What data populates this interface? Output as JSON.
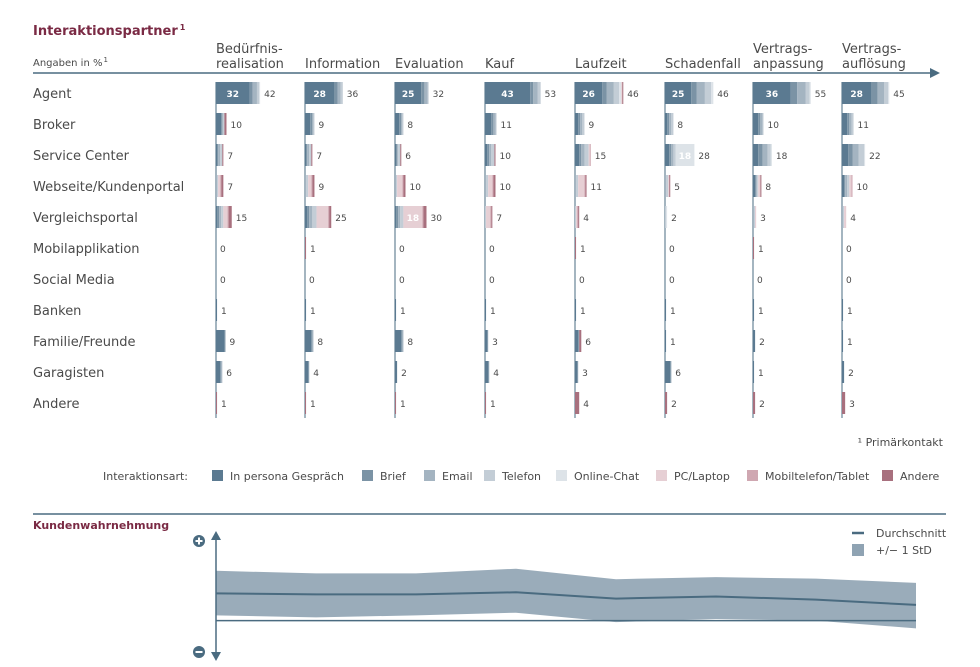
{
  "title": "Interaktionspartner",
  "title_sup": "1",
  "subtitle": "Angaben in %",
  "subtitle_sup": "1",
  "footnote": "¹ Primärkontakt",
  "legend_title": "Interaktionsart:",
  "colors": {
    "title": "#7a2a44",
    "axis": "#4a6b80",
    "text": "#4a4a4a",
    "band": "#8fa3b3",
    "line": "#4a6b80"
  },
  "chart_data": {
    "type": "bar",
    "stacked": true,
    "columns": [
      {
        "label_lines": [
          "Bedürfnis-",
          "realisation"
        ]
      },
      {
        "label_lines": [
          "Information"
        ]
      },
      {
        "label_lines": [
          "Evaluation"
        ]
      },
      {
        "label_lines": [
          "Kauf"
        ]
      },
      {
        "label_lines": [
          "Laufzeit"
        ]
      },
      {
        "label_lines": [
          "Schadenfall"
        ]
      },
      {
        "label_lines": [
          "Vertrags-",
          "anpassung"
        ]
      },
      {
        "label_lines": [
          "Vertrags-",
          "auflösung"
        ]
      }
    ],
    "rows": [
      "Agent",
      "Broker",
      "Service Center",
      "Webseite/Kundenportal",
      "Vergleichsportal",
      "Mobilapplikation",
      "Social Media",
      "Banken",
      "Familie/Freunde",
      "Garagisten",
      "Andere"
    ],
    "series": [
      {
        "name": "In persona Gespräch",
        "color": "#5b7a91"
      },
      {
        "name": "Brief",
        "color": "#7b93a5"
      },
      {
        "name": "Email",
        "color": "#a4b4c1"
      },
      {
        "name": "Telefon",
        "color": "#c3cdd6"
      },
      {
        "name": "Online-Chat",
        "color": "#dde3e8"
      },
      {
        "name": "PC/Laptop",
        "color": "#e6cfd4"
      },
      {
        "name": "Mobiltelefon/Tablet",
        "color": "#cfa7b1"
      },
      {
        "name": "Andere",
        "color": "#a8707e"
      }
    ],
    "totals": [
      [
        42,
        10,
        7,
        7,
        15,
        0,
        0,
        1,
        9,
        6,
        1
      ],
      [
        36,
        9,
        7,
        9,
        25,
        1,
        0,
        1,
        8,
        4,
        1
      ],
      [
        32,
        8,
        6,
        10,
        30,
        0,
        0,
        1,
        8,
        2,
        1
      ],
      [
        53,
        11,
        10,
        10,
        7,
        0,
        0,
        1,
        3,
        4,
        1
      ],
      [
        46,
        9,
        15,
        11,
        4,
        1,
        0,
        1,
        6,
        3,
        4
      ],
      [
        46,
        8,
        28,
        5,
        2,
        0,
        0,
        1,
        1,
        6,
        2
      ],
      [
        55,
        10,
        18,
        8,
        3,
        1,
        0,
        1,
        2,
        1,
        2
      ],
      [
        45,
        11,
        22,
        10,
        4,
        0,
        0,
        1,
        1,
        2,
        3
      ]
    ],
    "inner_labels": [
      {
        "col": 0,
        "row": 0,
        "value": 32
      },
      {
        "col": 1,
        "row": 0,
        "value": 28
      },
      {
        "col": 2,
        "row": 0,
        "value": 25
      },
      {
        "col": 3,
        "row": 0,
        "value": 43
      },
      {
        "col": 4,
        "row": 0,
        "value": 26
      },
      {
        "col": 5,
        "row": 0,
        "value": 25
      },
      {
        "col": 6,
        "row": 0,
        "value": 36
      },
      {
        "col": 7,
        "row": 0,
        "value": 28
      },
      {
        "col": 2,
        "row": 4,
        "value": 18
      },
      {
        "col": 5,
        "row": 2,
        "value": 18
      }
    ],
    "segments": [
      [
        [
          32,
          3,
          4,
          2,
          1,
          0,
          0,
          0
        ],
        [
          5,
          1,
          1,
          1,
          0,
          0,
          0,
          2
        ],
        [
          1,
          1,
          2,
          2,
          0,
          0,
          0,
          1
        ],
        [
          0,
          0,
          1,
          1,
          0,
          2,
          1,
          2
        ],
        [
          1,
          2,
          2,
          2,
          0,
          4,
          1,
          3
        ],
        [],
        [],
        [
          1,
          0,
          0,
          0,
          0,
          0,
          0,
          0
        ],
        [
          8,
          1,
          0,
          0,
          0,
          0,
          0,
          0
        ],
        [
          4,
          1,
          1,
          0,
          0,
          0,
          0,
          0
        ],
        [
          0,
          0,
          0,
          0,
          0,
          0,
          0,
          1
        ]
      ],
      [
        [
          28,
          3,
          3,
          2,
          0,
          0,
          0,
          0
        ],
        [
          5,
          2,
          1,
          1,
          0,
          0,
          0,
          0
        ],
        [
          1,
          1,
          2,
          2,
          0,
          0,
          0,
          1
        ],
        [
          0,
          0,
          1,
          2,
          0,
          3,
          1,
          2
        ],
        [
          2,
          2,
          3,
          4,
          0,
          11,
          1,
          2
        ],
        [
          0,
          0,
          0,
          0,
          0,
          0,
          0,
          1
        ],
        [],
        [
          1,
          0,
          0,
          0,
          0,
          0,
          0,
          0
        ],
        [
          6,
          1,
          1,
          0,
          0,
          0,
          0,
          0
        ],
        [
          3,
          1,
          0,
          0,
          0,
          0,
          0,
          0
        ],
        [
          0,
          0,
          0,
          0,
          0,
          0,
          0,
          1
        ]
      ],
      [
        [
          25,
          3,
          3,
          1,
          0,
          0,
          0,
          0
        ],
        [
          4,
          2,
          1,
          1,
          0,
          0,
          0,
          0
        ],
        [
          1,
          1,
          1,
          2,
          0,
          0,
          0,
          1
        ],
        [
          0,
          0,
          1,
          1,
          0,
          5,
          1,
          2
        ],
        [
          1,
          2,
          2,
          3,
          0,
          18,
          1,
          3
        ],
        [],
        [],
        [
          1,
          0,
          0,
          0,
          0,
          0,
          0,
          0
        ],
        [
          6,
          1,
          1,
          0,
          0,
          0,
          0,
          0
        ],
        [
          2,
          0,
          0,
          0,
          0,
          0,
          0,
          0
        ],
        [
          0,
          0,
          0,
          0,
          0,
          0,
          0,
          1
        ]
      ],
      [
        [
          43,
          3,
          4,
          3,
          0,
          0,
          0,
          0
        ],
        [
          6,
          2,
          2,
          1,
          0,
          0,
          0,
          0
        ],
        [
          2,
          2,
          2,
          3,
          0,
          0,
          0,
          1
        ],
        [
          0,
          0,
          1,
          2,
          0,
          4,
          1,
          2
        ],
        [
          0,
          0,
          0,
          1,
          0,
          4,
          1,
          1
        ],
        [],
        [],
        [
          1,
          0,
          0,
          0,
          0,
          0,
          0,
          0
        ],
        [
          2,
          1,
          0,
          0,
          0,
          0,
          0,
          0
        ],
        [
          3,
          1,
          0,
          0,
          0,
          0,
          0,
          0
        ],
        [
          0,
          0,
          0,
          0,
          0,
          0,
          0,
          1
        ]
      ],
      [
        [
          26,
          4,
          7,
          5,
          2,
          1,
          0,
          1
        ],
        [
          3,
          2,
          2,
          2,
          0,
          0,
          0,
          0
        ],
        [
          4,
          2,
          3,
          4,
          0,
          1,
          1,
          0
        ],
        [
          0,
          0,
          1,
          2,
          0,
          6,
          1,
          1
        ],
        [
          0,
          0,
          0,
          1,
          0,
          1,
          1,
          1
        ],
        [
          0,
          0,
          0,
          0,
          0,
          0,
          0,
          1
        ],
        [],
        [
          1,
          0,
          0,
          0,
          0,
          0,
          0,
          0
        ],
        [
          3,
          1,
          0,
          0,
          0,
          0,
          0,
          2
        ],
        [
          2,
          1,
          0,
          0,
          0,
          0,
          0,
          0
        ],
        [
          0,
          0,
          0,
          0,
          0,
          0,
          0,
          4
        ]
      ],
      [
        [
          25,
          5,
          8,
          6,
          2,
          0,
          0,
          0
        ],
        [
          2,
          2,
          2,
          2,
          0,
          0,
          0,
          0
        ],
        [
          4,
          2,
          2,
          2,
          18,
          0,
          0,
          0
        ],
        [
          0,
          0,
          1,
          2,
          0,
          1,
          0,
          1
        ],
        [
          0,
          0,
          0,
          1,
          1,
          0,
          0,
          0
        ],
        [],
        [],
        [
          1,
          0,
          0,
          0,
          0,
          0,
          0,
          0
        ],
        [
          1,
          0,
          0,
          0,
          0,
          0,
          0,
          0
        ],
        [
          5,
          1,
          0,
          0,
          0,
          0,
          0,
          0
        ],
        [
          0,
          0,
          0,
          0,
          0,
          0,
          0,
          2
        ]
      ],
      [
        [
          36,
          6,
          8,
          4,
          1,
          0,
          0,
          0
        ],
        [
          5,
          2,
          2,
          1,
          0,
          0,
          0,
          0
        ],
        [
          5,
          4,
          5,
          3,
          1,
          0,
          0,
          0
        ],
        [
          2,
          1,
          1,
          1,
          0,
          2,
          0,
          1
        ],
        [
          0,
          0,
          1,
          1,
          0,
          1,
          0,
          0
        ],
        [
          0,
          0,
          0,
          0,
          0,
          0,
          0,
          1
        ],
        [],
        [
          1,
          0,
          0,
          0,
          0,
          0,
          0,
          0
        ],
        [
          2,
          0,
          0,
          0,
          0,
          0,
          0,
          0
        ],
        [
          1,
          0,
          0,
          0,
          0,
          0,
          0,
          0
        ],
        [
          0,
          0,
          0,
          0,
          0,
          0,
          0,
          2
        ]
      ],
      [
        [
          28,
          6,
          6,
          4,
          1,
          0,
          0,
          0
        ],
        [
          5,
          2,
          2,
          2,
          0,
          0,
          0,
          0
        ],
        [
          6,
          4,
          6,
          5,
          1,
          0,
          0,
          0
        ],
        [
          2,
          1,
          2,
          2,
          0,
          2,
          1,
          0
        ],
        [
          0,
          0,
          1,
          1,
          0,
          2,
          0,
          0
        ],
        [],
        [],
        [
          1,
          0,
          0,
          0,
          0,
          0,
          0,
          0
        ],
        [
          1,
          0,
          0,
          0,
          0,
          0,
          0,
          0
        ],
        [
          2,
          0,
          0,
          0,
          0,
          0,
          0,
          0
        ],
        [
          0,
          0,
          0,
          0,
          0,
          0,
          0,
          3
        ]
      ]
    ]
  },
  "perception": {
    "title": "Kundenwahrnehmung",
    "legend_mean": "Durchschnitt",
    "legend_std": "+/− 1 StD",
    "x": [
      1,
      2,
      3,
      4,
      5,
      6,
      7,
      8
    ],
    "mean": [
      0.52,
      0.5,
      0.5,
      0.54,
      0.42,
      0.46,
      0.4,
      0.3
    ],
    "upper": [
      0.95,
      0.9,
      0.9,
      0.99,
      0.79,
      0.83,
      0.8,
      0.72
    ],
    "lower": [
      0.1,
      0.06,
      0.1,
      0.15,
      -0.03,
      0.03,
      0.0,
      -0.15
    ],
    "y_range": [
      -0.6,
      1.5
    ]
  }
}
